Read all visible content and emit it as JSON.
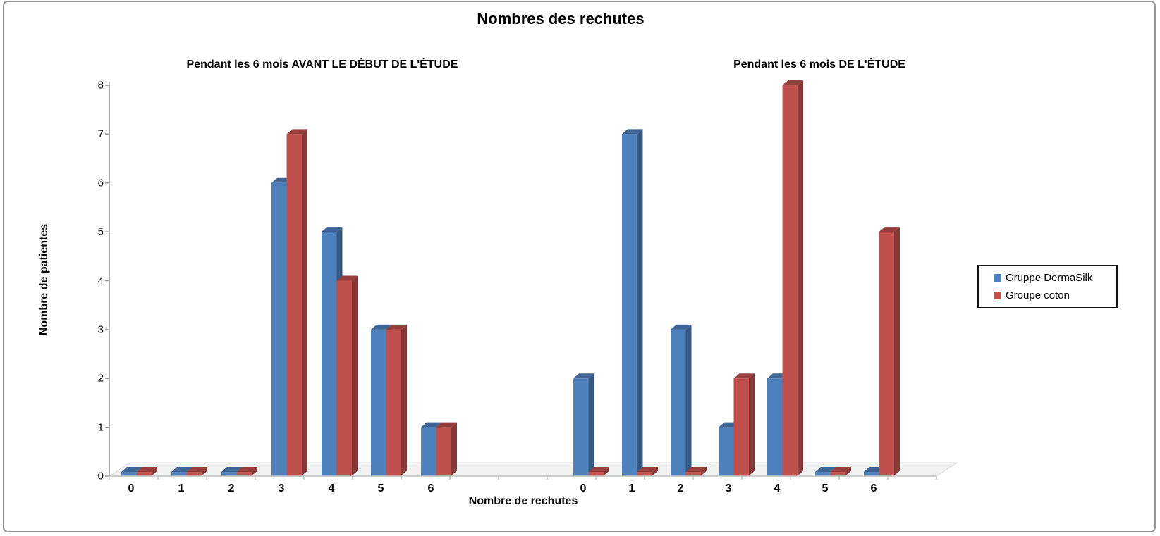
{
  "title": "Nombres des rechutes",
  "legend": {
    "items": [
      {
        "label": "Gruppe DermaSilk",
        "color": "#4F81BD"
      },
      {
        "label": "Groupe coton",
        "color": "#C0504D"
      }
    ]
  },
  "chart_data": {
    "type": "bar",
    "style": "3d-clustered",
    "title": "Nombres des rechutes",
    "xlabel": "Nombre de rechutes",
    "ylabel": "Nombre de patientes",
    "ylim": [
      0,
      8
    ],
    "y_ticks": [
      0,
      1,
      2,
      3,
      4,
      5,
      6,
      7,
      8
    ],
    "grid": false,
    "legend_position": "right",
    "groups": [
      {
        "subtitle": "Pendant les 6 mois AVANT LE DÉBUT DE L'ÉTUDE",
        "categories": [
          "0",
          "1",
          "2",
          "3",
          "4",
          "5",
          "6"
        ],
        "series": [
          {
            "name": "Gruppe DermaSilk",
            "color": "#4F81BD",
            "values": [
              0,
              0,
              0,
              6,
              5,
              3,
              1
            ]
          },
          {
            "name": "Groupe coton",
            "color": "#C0504D",
            "values": [
              0,
              0,
              0,
              7,
              4,
              3,
              1
            ]
          }
        ]
      },
      {
        "subtitle": "Pendant les 6 mois DE L'ÉTUDE",
        "categories": [
          "0",
          "1",
          "2",
          "3",
          "4",
          "5",
          "6"
        ],
        "series": [
          {
            "name": "Gruppe DermaSilk",
            "color": "#4F81BD",
            "values": [
              2,
              7,
              3,
              1,
              2,
              0,
              0
            ]
          },
          {
            "name": "Groupe coton",
            "color": "#C0504D",
            "values": [
              0,
              0,
              0,
              2,
              8,
              0,
              5
            ]
          }
        ]
      }
    ]
  }
}
